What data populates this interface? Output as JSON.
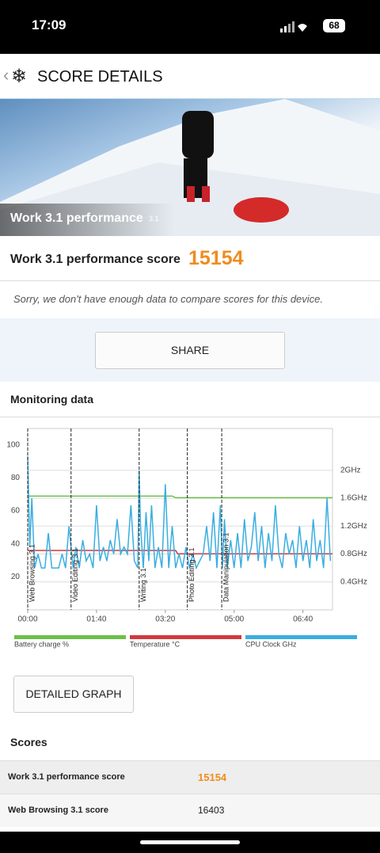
{
  "status_bar": {
    "time": "17:09",
    "battery": "68"
  },
  "header": {
    "title": "SCORE DETAILS"
  },
  "hero": {
    "title": "Work 3.1 performance",
    "badge": "3.1"
  },
  "score": {
    "label": "Work 3.1 performance score",
    "value": "15154"
  },
  "note": "Sorry, we don't have enough data to compare scores for this device.",
  "share_button": "SHARE",
  "monitoring": {
    "title": "Monitoring data",
    "chart": {
      "type": "line",
      "xlim": [
        0,
        443
      ],
      "xticks": [
        {
          "value": 0,
          "label": "00:00"
        },
        {
          "value": 100,
          "label": "01:40"
        },
        {
          "value": 200,
          "label": "03:20"
        },
        {
          "value": 300,
          "label": "05:00"
        },
        {
          "value": 400,
          "label": "06:40"
        }
      ],
      "ylim": [
        0,
        110
      ],
      "yticks": [
        20,
        40,
        60,
        80,
        100
      ],
      "y2lim": [
        0,
        2.6
      ],
      "y2ticks": [
        {
          "value": 0.4,
          "label": "0.4GHz"
        },
        {
          "value": 0.8,
          "label": "0.8GHz"
        },
        {
          "value": 1.2,
          "label": "1.2GHz"
        },
        {
          "value": 1.6,
          "label": "1.6GHz"
        },
        {
          "value": 2,
          "label": "2GHz"
        }
      ],
      "grid": true,
      "markers": [
        {
          "x": 0,
          "label": "Web Browsing 3.1"
        },
        {
          "x": 63,
          "label": "Video Editing 3.1"
        },
        {
          "x": 162,
          "label": "Writing 3.1"
        },
        {
          "x": 232,
          "label": "Photo Editing 3.1"
        },
        {
          "x": 282,
          "label": "Data Manipulation 3.1"
        }
      ],
      "series": [
        {
          "name": "Battery charge %",
          "color": "#6cc04a",
          "x": [
            0,
            210,
            215,
            443
          ],
          "values": [
            69,
            69,
            68,
            68
          ]
        },
        {
          "name": "Temperature °C",
          "color": "#d0393e",
          "x": [
            0,
            215,
            218,
            443
          ],
          "values": [
            36,
            36,
            34,
            34
          ]
        },
        {
          "name": "CPU Clock GHz",
          "color": "#3aaee0",
          "axis": "y2",
          "x": [
            0,
            3,
            6,
            10,
            15,
            20,
            25,
            30,
            35,
            40,
            45,
            50,
            55,
            60,
            63,
            66,
            70,
            75,
            80,
            85,
            90,
            95,
            100,
            105,
            110,
            115,
            120,
            125,
            130,
            135,
            140,
            145,
            150,
            155,
            160,
            162,
            164,
            168,
            172,
            176,
            180,
            185,
            190,
            195,
            200,
            205,
            210,
            215,
            220,
            225,
            230,
            235,
            240,
            245,
            250,
            255,
            260,
            265,
            270,
            275,
            280,
            283,
            286,
            290,
            295,
            300,
            305,
            310,
            315,
            320,
            325,
            330,
            335,
            340,
            345,
            350,
            355,
            360,
            365,
            370,
            375,
            380,
            385,
            390,
            395,
            400,
            405,
            410,
            415,
            420,
            425,
            430,
            435,
            440
          ],
          "values": [
            2.2,
            0.9,
            1.6,
            0.6,
            0.8,
            0.6,
            0.6,
            1.1,
            0.6,
            0.6,
            0.6,
            0.8,
            0.6,
            1.2,
            0.9,
            0.6,
            0.9,
            0.6,
            1.0,
            0.7,
            0.8,
            0.6,
            1.5,
            0.7,
            0.9,
            0.7,
            1.0,
            0.8,
            1.3,
            0.8,
            0.9,
            0.8,
            1.5,
            0.7,
            0.6,
            2.0,
            1.2,
            0.6,
            1.4,
            0.7,
            1.5,
            0.6,
            0.9,
            0.6,
            1.8,
            0.6,
            1.2,
            0.6,
            0.8,
            0.6,
            0.9,
            0.6,
            0.8,
            0.6,
            0.7,
            0.8,
            1.2,
            0.7,
            1.4,
            0.6,
            1.5,
            0.6,
            1.3,
            0.6,
            1.0,
            0.6,
            1.1,
            0.6,
            1.3,
            0.7,
            0.9,
            1.4,
            0.7,
            1.2,
            0.6,
            1.1,
            0.7,
            1.5,
            0.8,
            0.6,
            1.1,
            0.8,
            1.0,
            0.6,
            1.2,
            0.7,
            1.0,
            0.6,
            1.3,
            0.7,
            1.0,
            0.6,
            1.6,
            0.7
          ]
        }
      ]
    }
  },
  "detailed_button": "DETAILED GRAPH",
  "scores": {
    "title": "Scores",
    "rows": [
      [
        "Work 3.1 performance score",
        "15154"
      ],
      [
        "Web Browsing 3.1 score",
        "16403"
      ]
    ]
  }
}
